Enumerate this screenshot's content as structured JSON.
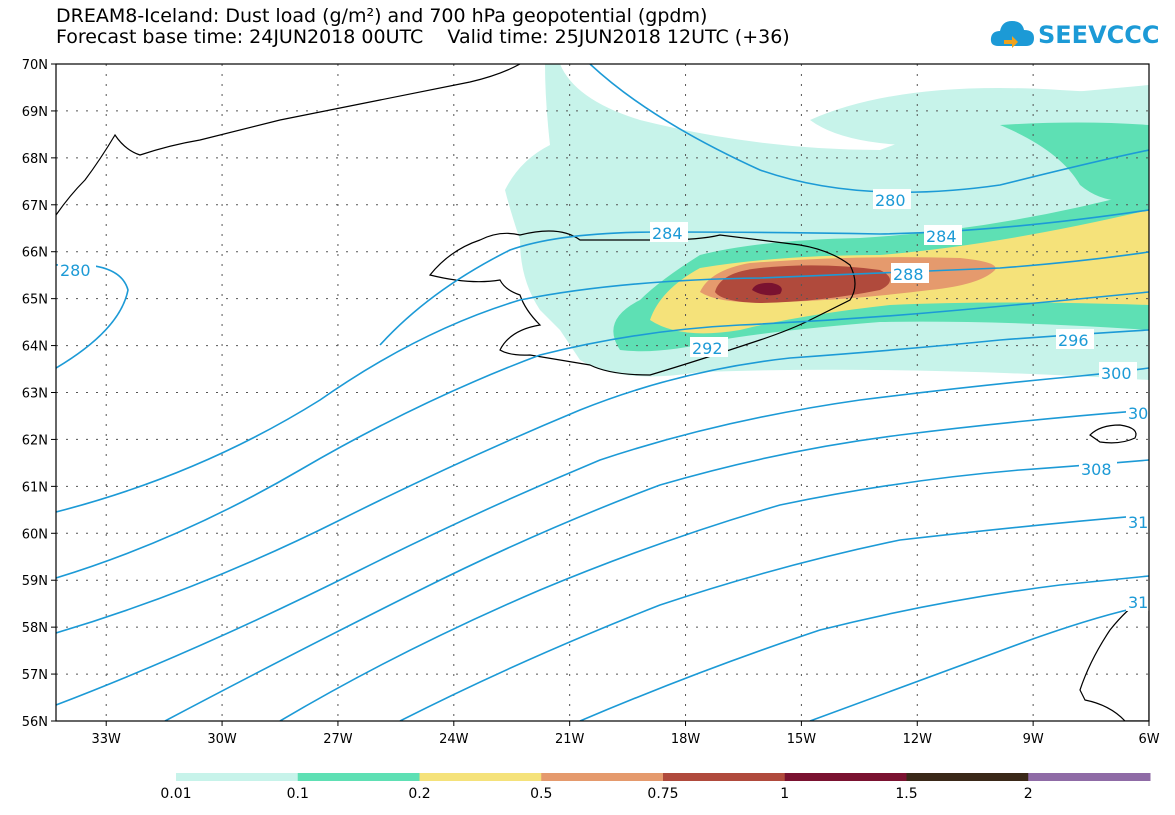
{
  "title": {
    "line1": "DREAM8-Iceland: Dust load (g/m²) and 700 hPa geopotential (gpdm)",
    "line2": "Forecast base time: 24JUN2018 00UTC    Valid time: 25JUN2018 12UTC (+36)"
  },
  "logo": {
    "text": "SEEVCCC",
    "icon": "cloud-icon",
    "color": "#1c9ad6"
  },
  "axes": {
    "lat_labels": [
      "70N",
      "69N",
      "68N",
      "67N",
      "66N",
      "65N",
      "64N",
      "63N",
      "62N",
      "61N",
      "60N",
      "59N",
      "58N",
      "57N",
      "56N"
    ],
    "lon_labels": [
      "33W",
      "30W",
      "27W",
      "24W",
      "21W",
      "18W",
      "15W",
      "12W",
      "9W",
      "6W"
    ],
    "lat_range": [
      56,
      70
    ],
    "lon_range": [
      -34.3,
      -6
    ],
    "grid": true
  },
  "contours": {
    "color": "#1c9ad6",
    "labels": [
      "280",
      "284",
      "288",
      "292",
      "296",
      "300",
      "30",
      "308",
      "31",
      "31",
      "280",
      "284"
    ]
  },
  "legend": {
    "items": [
      {
        "label": "0.01",
        "color": "#c7f3ea"
      },
      {
        "label": "0.1",
        "color": "#5ee0b4"
      },
      {
        "label": "0.2",
        "color": "#f5e27a"
      },
      {
        "label": "0.5",
        "color": "#e59a6d"
      },
      {
        "label": "0.75",
        "color": "#b04a3c"
      },
      {
        "label": "1",
        "color": "#7a1230"
      },
      {
        "label": "1.5",
        "color": "#3a2818"
      },
      {
        "label": "2",
        "color": "#8f6ba6"
      }
    ]
  }
}
